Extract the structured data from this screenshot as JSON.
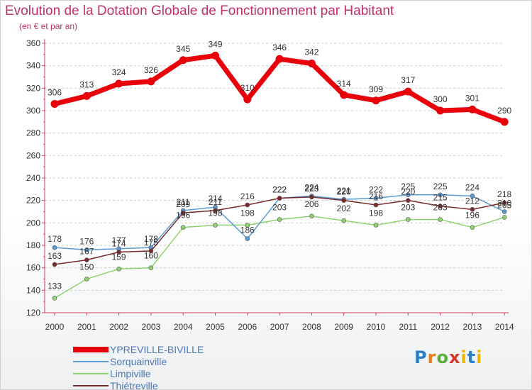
{
  "title": "Evolution de la Dotation Globale de Fonctionnement par Habitant",
  "subtitle": "(en € et par an)",
  "logo": [
    "P",
    "r",
    "o",
    "x",
    "i",
    "t",
    "i"
  ],
  "chart_data": {
    "type": "line",
    "title": "Evolution de la Dotation Globale de Fonctionnement par Habitant",
    "subtitle": "(en € et par an)",
    "xlabel": "",
    "ylabel": "",
    "x": [
      "2000",
      "2001",
      "2002",
      "2003",
      "2004",
      "2005",
      "2006",
      "2007",
      "2008",
      "2009",
      "2010",
      "2011",
      "2012",
      "2013",
      "2014"
    ],
    "ylim": [
      120,
      360
    ],
    "yticks": [
      120,
      140,
      160,
      180,
      200,
      220,
      240,
      260,
      280,
      300,
      320,
      340,
      360
    ],
    "grid": "horizontal dashed",
    "legend_position": "bottom-left",
    "series": [
      {
        "name": "YPREVILLE-BIVILLE",
        "color": "#e8000b",
        "values": [
          306,
          313,
          324,
          326,
          345,
          349,
          310,
          346,
          342,
          314,
          309,
          317,
          300,
          301,
          290
        ]
      },
      {
        "name": "Sorquainville",
        "color": "#5a9bd5",
        "values": [
          178,
          176,
          177,
          178,
          211,
          214,
          186,
          222,
          224,
          221,
          222,
          225,
          225,
          224,
          210
        ]
      },
      {
        "name": "Limpiville",
        "color": "#8fd270",
        "values": [
          133,
          150,
          159,
          160,
          196,
          198,
          198,
          203,
          206,
          202,
          198,
          203,
          203,
          196,
          205
        ]
      },
      {
        "name": "Thiétreville",
        "color": "#7a2a2a",
        "values": [
          163,
          167,
          174,
          175,
          209,
          211,
          216,
          222,
          223,
          220,
          216,
          220,
          215,
          212,
          218
        ]
      }
    ]
  }
}
